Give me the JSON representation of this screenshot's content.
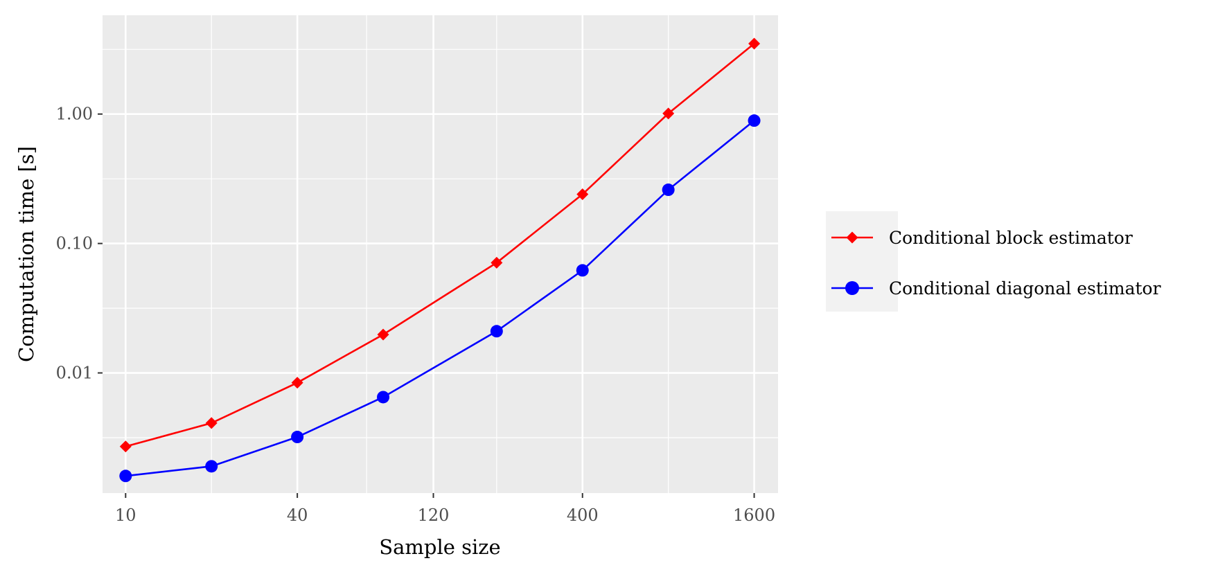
{
  "chart_data": {
    "type": "line",
    "xlabel": "Sample size",
    "ylabel": "Computation time [s]",
    "x_scale": "log",
    "y_scale": "log",
    "xlim": [
      8.3,
      1940
    ],
    "ylim": [
      0.00118,
      5.8
    ],
    "x_ticks": [
      10,
      40,
      120,
      400,
      1600
    ],
    "x_tick_labels": [
      "10",
      "40",
      "120",
      "400",
      "1600"
    ],
    "x_minor_ticks": [
      20,
      70,
      200,
      800
    ],
    "y_ticks": [
      0.01,
      0.1,
      1.0
    ],
    "y_tick_labels": [
      "0.01",
      "0.10",
      "1.00"
    ],
    "y_minor_ticks": [
      0.00316,
      0.0316,
      0.316,
      3.16
    ],
    "grid": true,
    "legend_position": "right",
    "x": [
      10,
      20,
      40,
      80,
      200,
      400,
      800,
      1600
    ],
    "series": [
      {
        "name": "Conditional block estimator",
        "color": "#ff0000",
        "marker": "diamond",
        "values": [
          0.0027,
          0.0041,
          0.0084,
          0.0198,
          0.071,
          0.24,
          1.01,
          3.5
        ]
      },
      {
        "name": "Conditional diagonal estimator",
        "color": "#0000ff",
        "marker": "circle",
        "values": [
          0.0016,
          0.0019,
          0.0032,
          0.0065,
          0.021,
          0.062,
          0.26,
          0.89
        ]
      }
    ],
    "colors": {
      "panel_background": "#ebebeb",
      "grid": "#ffffff",
      "legend_background": "#f2f2f2",
      "tick_text": "#4d4d4d"
    }
  }
}
